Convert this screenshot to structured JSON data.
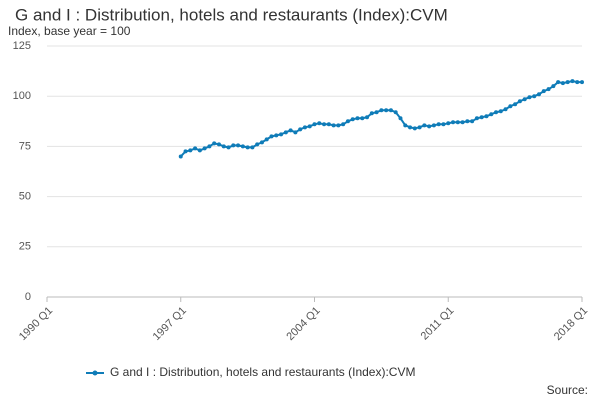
{
  "chart_data": {
    "type": "line",
    "title": "G and I : Distribution, hotels and restaurants (Index):CVM",
    "subtitle": "Index, base year = 100",
    "source": "Source:",
    "categories": [
      "1990 Q1",
      null,
      null,
      null,
      null,
      null,
      null,
      null,
      null,
      null,
      null,
      null,
      null,
      null,
      null,
      null,
      null,
      null,
      null,
      null,
      null,
      null,
      null,
      null,
      null,
      null,
      null,
      null,
      "1997 Q1",
      null,
      null,
      null,
      null,
      null,
      null,
      null,
      null,
      null,
      null,
      null,
      null,
      null,
      null,
      null,
      null,
      null,
      null,
      null,
      null,
      null,
      null,
      null,
      null,
      null,
      null,
      null,
      "2004 Q1",
      null,
      null,
      null,
      null,
      null,
      null,
      null,
      null,
      null,
      null,
      null,
      null,
      null,
      null,
      null,
      null,
      null,
      null,
      null,
      null,
      null,
      null,
      null,
      null,
      null,
      null,
      null,
      "2011 Q1",
      null,
      null,
      null,
      null,
      null,
      null,
      null,
      null,
      null,
      null,
      null,
      null,
      null,
      null,
      null,
      null,
      null,
      null,
      null,
      null,
      null,
      null,
      null,
      null,
      null,
      null,
      null,
      "2018 Q1"
    ],
    "series": [
      {
        "name": "G and I : Distribution, hotels and restaurants (Index):CVM",
        "color": "#0f7cb8",
        "values": [
          null,
          null,
          null,
          null,
          null,
          null,
          null,
          null,
          null,
          null,
          null,
          null,
          null,
          null,
          null,
          null,
          null,
          null,
          null,
          null,
          null,
          null,
          null,
          null,
          null,
          null,
          null,
          null,
          70,
          72.5,
          73,
          74,
          73,
          74,
          75,
          76.5,
          76,
          75,
          74.5,
          75.5,
          75.5,
          75,
          74.5,
          74.5,
          76,
          77,
          78.5,
          80,
          80.5,
          81,
          82,
          83,
          82,
          83.5,
          84.5,
          85,
          86,
          86.5,
          86,
          86,
          85.5,
          85.5,
          86,
          87.5,
          88.5,
          89,
          89,
          89.5,
          91.5,
          92,
          93,
          93,
          93,
          92,
          89,
          85.5,
          84.5,
          84,
          84.5,
          85.5,
          85,
          85.5,
          86,
          86,
          86.5,
          87,
          87,
          87,
          87.5,
          87.5,
          89,
          89.5,
          90,
          91,
          92,
          92.5,
          93.5,
          95,
          96,
          97.5,
          98.5,
          99.5,
          100,
          101,
          102.5,
          103.5,
          105,
          107,
          106.5,
          107,
          107.5,
          107,
          107
        ]
      }
    ],
    "ylim": [
      0,
      125
    ],
    "yticks": [
      0,
      25,
      50,
      75,
      100,
      125
    ],
    "grid": true
  }
}
